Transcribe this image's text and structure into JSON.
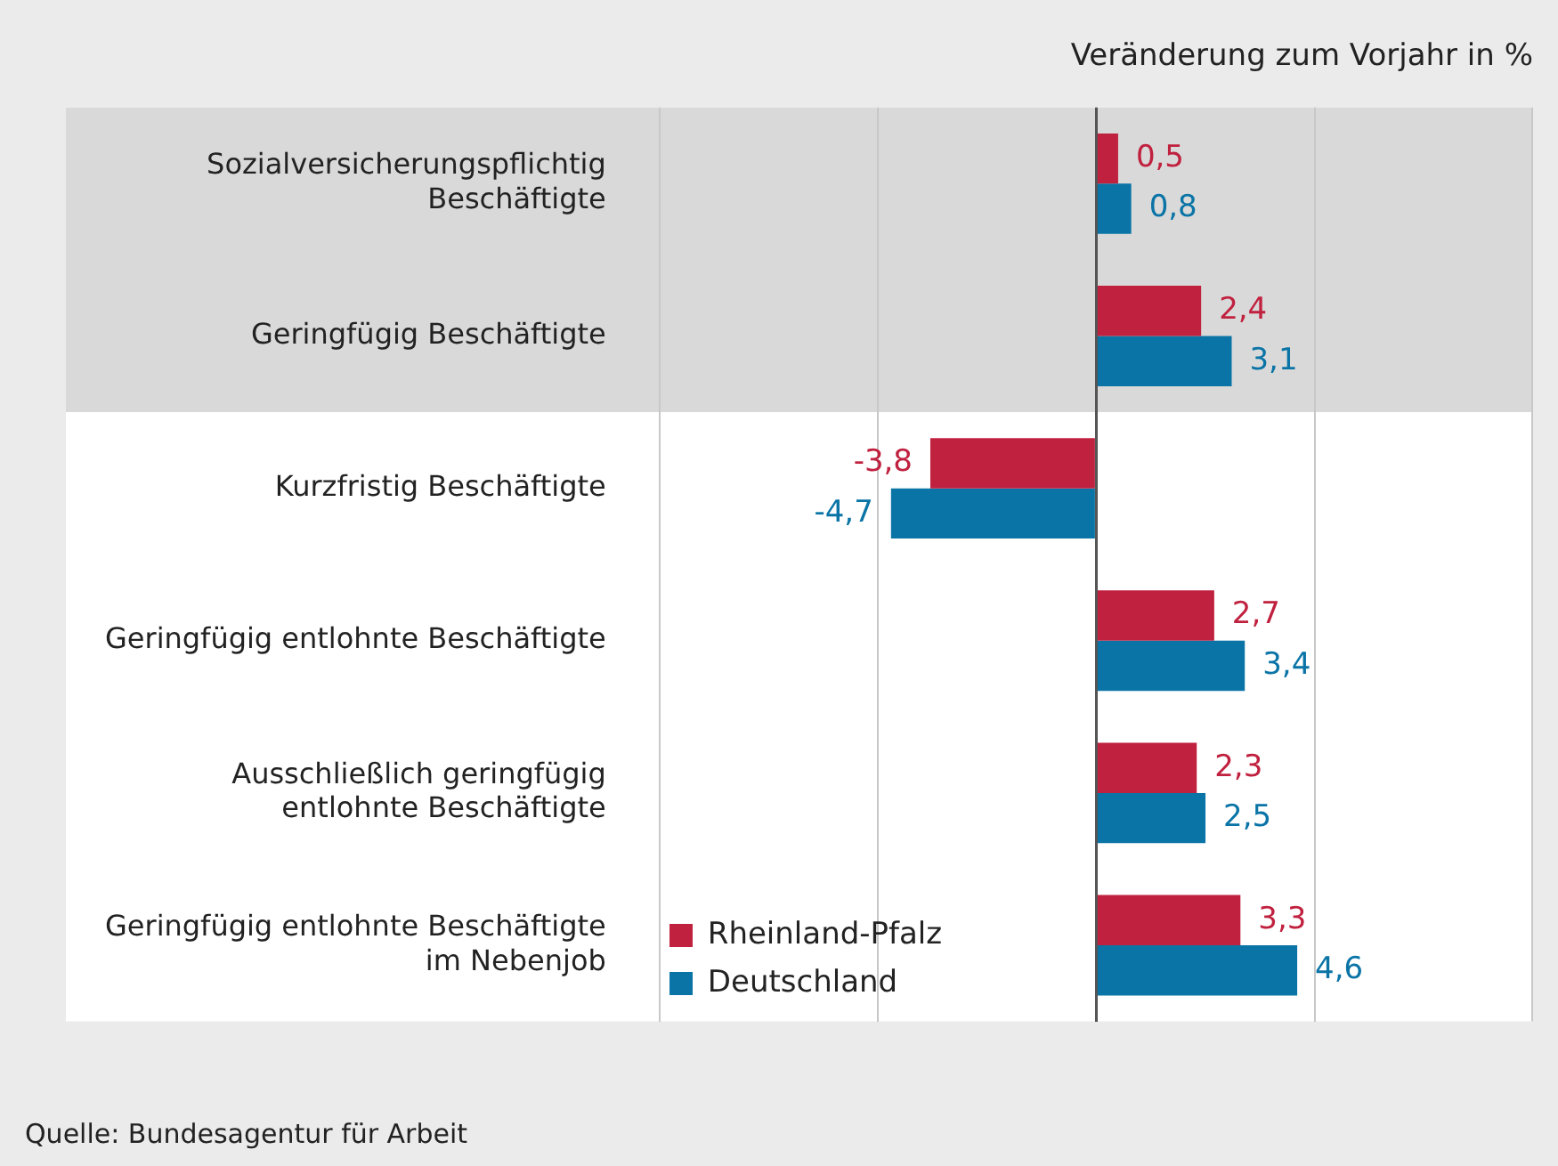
{
  "chart_data": {
    "type": "bar",
    "orientation": "horizontal",
    "title": "Veränderung zum Vorjahr in %",
    "categories": [
      "Sozialversicherungspflichtig Beschäftigte",
      "Geringfügig Beschäftigte",
      "Kurzfristig Beschäftigte",
      "Geringfügig entlohnte Beschäftigte",
      "Ausschließlich geringfügig entlohnte Beschäftigte",
      "Geringfügig entlohnte Beschäftigte im Nebenjob"
    ],
    "series": [
      {
        "name": "Rheinland-Pfalz",
        "color": "#c0213f",
        "values": [
          0.5,
          2.4,
          -3.8,
          2.7,
          2.3,
          3.3
        ],
        "value_labels": [
          "0,5",
          "2,4",
          "-3,8",
          "2,7",
          "2,3",
          "3,3"
        ]
      },
      {
        "name": "Deutschland",
        "color": "#0a74a6",
        "values": [
          0.8,
          3.1,
          -4.7,
          3.4,
          2.5,
          4.6
        ],
        "value_labels": [
          "0,8",
          "3,1",
          "-4,7",
          "3,4",
          "2,5",
          "4,6"
        ]
      }
    ],
    "xlim": [
      -10,
      10
    ],
    "xticks": [
      {
        "value": -10,
        "label": null
      },
      {
        "value": -5,
        "label": null
      },
      {
        "value": 0,
        "label": null
      },
      {
        "value": 5,
        "label": null
      }
    ],
    "tick_labels": "y",
    "grid": "x",
    "legend": "bottom left",
    "bands": [
      {
        "axis": "y",
        "from": "Sozialversicherungspflichtig Beschäftigte",
        "to": "Geringfügig Beschäftigte",
        "color": "#d9d9d9"
      }
    ],
    "annotations": [
      "Quelle: Bundesagentur für Arbeit"
    ]
  }
}
